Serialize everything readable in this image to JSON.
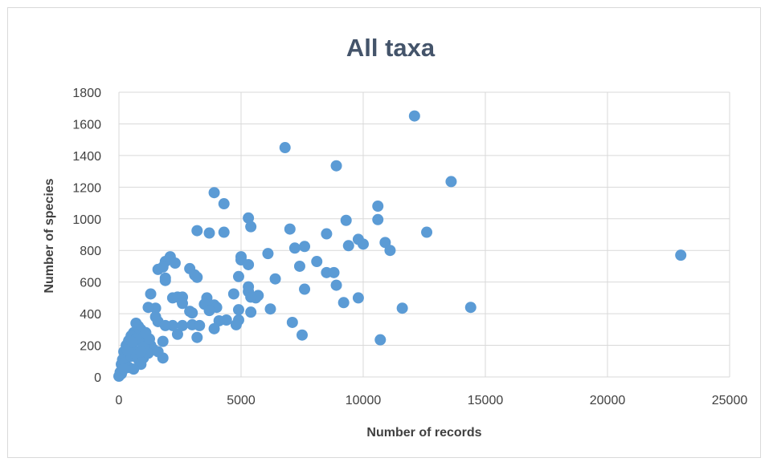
{
  "chart_data": {
    "type": "scatter",
    "title": "All taxa",
    "xlabel": "Number of records",
    "ylabel": "Number of species",
    "xlim": [
      0,
      25000
    ],
    "ylim": [
      0,
      1800
    ],
    "xticks": [
      0,
      5000,
      10000,
      15000,
      20000,
      25000
    ],
    "yticks": [
      0,
      200,
      400,
      600,
      800,
      1000,
      1200,
      1400,
      1600,
      1800
    ],
    "grid": "vertical and horizontal gridlines",
    "legend": "none",
    "point_color": "#5b9bd5",
    "series": [
      {
        "points": [
          [
            12100,
            1650
          ],
          [
            6800,
            1450
          ],
          [
            8900,
            1335
          ],
          [
            13600,
            1235
          ],
          [
            3900,
            1165
          ],
          [
            4300,
            1095
          ],
          [
            10600,
            1080
          ],
          [
            5300,
            1005
          ],
          [
            10600,
            995
          ],
          [
            9300,
            990
          ],
          [
            5400,
            950
          ],
          [
            7000,
            935
          ],
          [
            3200,
            925
          ],
          [
            4300,
            915
          ],
          [
            3700,
            910
          ],
          [
            12600,
            915
          ],
          [
            8500,
            905
          ],
          [
            9800,
            870
          ],
          [
            10900,
            850
          ],
          [
            10000,
            840
          ],
          [
            9400,
            830
          ],
          [
            7600,
            825
          ],
          [
            7200,
            815
          ],
          [
            11100,
            800
          ],
          [
            6100,
            780
          ],
          [
            23000,
            770
          ],
          [
            5000,
            760
          ],
          [
            2100,
            760
          ],
          [
            1900,
            730
          ],
          [
            5000,
            740
          ],
          [
            8100,
            730
          ],
          [
            2300,
            720
          ],
          [
            5300,
            710
          ],
          [
            7400,
            700
          ],
          [
            1800,
            695
          ],
          [
            1600,
            680
          ],
          [
            2900,
            685
          ],
          [
            8500,
            660
          ],
          [
            8800,
            660
          ],
          [
            3100,
            645
          ],
          [
            4900,
            635
          ],
          [
            3200,
            630
          ],
          [
            1900,
            625
          ],
          [
            6400,
            620
          ],
          [
            1900,
            610
          ],
          [
            5600,
            500
          ],
          [
            5700,
            515
          ],
          [
            5400,
            505
          ],
          [
            4700,
            525
          ],
          [
            5300,
            540
          ],
          [
            5300,
            570
          ],
          [
            7600,
            555
          ],
          [
            8900,
            580
          ],
          [
            1300,
            525
          ],
          [
            2200,
            500
          ],
          [
            2400,
            505
          ],
          [
            2600,
            505
          ],
          [
            3600,
            500
          ],
          [
            9800,
            500
          ],
          [
            9200,
            470
          ],
          [
            2600,
            465
          ],
          [
            3500,
            460
          ],
          [
            3900,
            455
          ],
          [
            4000,
            440
          ],
          [
            14400,
            440
          ],
          [
            1500,
            435
          ],
          [
            6200,
            430
          ],
          [
            4900,
            425
          ],
          [
            11600,
            435
          ],
          [
            1200,
            440
          ],
          [
            3700,
            420
          ],
          [
            2900,
            415
          ],
          [
            3000,
            405
          ],
          [
            1500,
            380
          ],
          [
            5400,
            410
          ],
          [
            1600,
            350
          ],
          [
            4400,
            360
          ],
          [
            4900,
            360
          ],
          [
            4100,
            355
          ],
          [
            7100,
            345
          ],
          [
            2600,
            325
          ],
          [
            2200,
            325
          ],
          [
            3000,
            330
          ],
          [
            3300,
            325
          ],
          [
            4800,
            330
          ],
          [
            1900,
            325
          ],
          [
            3900,
            305
          ],
          [
            7500,
            265
          ],
          [
            2400,
            270
          ],
          [
            10700,
            235
          ],
          [
            3200,
            250
          ],
          [
            1800,
            225
          ],
          [
            1800,
            120
          ],
          [
            1300,
            200
          ],
          [
            1000,
            260
          ],
          [
            1100,
            200
          ],
          [
            1400,
            175
          ],
          [
            800,
            320
          ],
          [
            700,
            340
          ],
          [
            900,
            300
          ],
          [
            600,
            280
          ],
          [
            500,
            260
          ],
          [
            400,
            230
          ],
          [
            300,
            200
          ],
          [
            200,
            160
          ],
          [
            300,
            140
          ],
          [
            100,
            80
          ],
          [
            50,
            30
          ],
          [
            100,
            20
          ],
          [
            0,
            5
          ],
          [
            150,
            110
          ],
          [
            250,
            90
          ],
          [
            400,
            60
          ],
          [
            500,
            130
          ],
          [
            600,
            170
          ],
          [
            700,
            140
          ],
          [
            800,
            110
          ],
          [
            900,
            80
          ],
          [
            1000,
            120
          ],
          [
            1200,
            150
          ],
          [
            600,
            50
          ],
          [
            800,
            230
          ],
          [
            1000,
            190
          ],
          [
            1100,
            280
          ],
          [
            450,
            200
          ],
          [
            350,
            170
          ],
          [
            700,
            240
          ],
          [
            550,
            220
          ],
          [
            900,
            160
          ],
          [
            1250,
            240
          ],
          [
            1600,
            160
          ],
          [
            200,
            50
          ]
        ]
      }
    ]
  }
}
